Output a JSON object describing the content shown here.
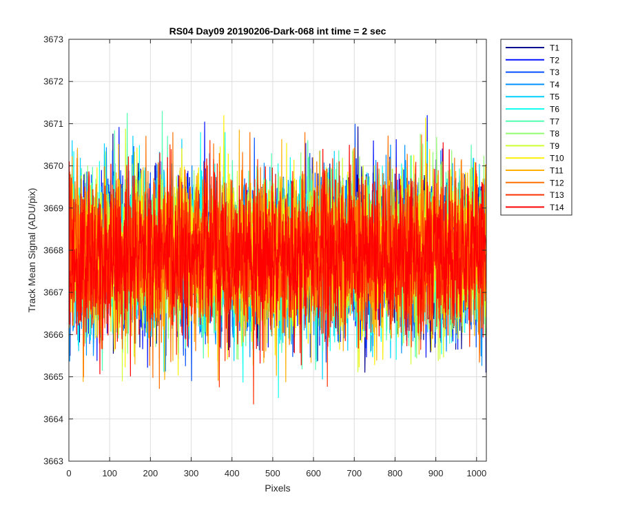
{
  "chart_data": {
    "type": "line",
    "title": "RS04 Day09 20190206-Dark-068 int time = 2 sec",
    "xlabel": "Pixels",
    "ylabel": "Track Mean Signal (ADU/pix)",
    "xlim": [
      0,
      1024
    ],
    "ylim": [
      3663,
      3673
    ],
    "xticks": [
      0,
      100,
      200,
      300,
      400,
      500,
      600,
      700,
      800,
      900,
      1000
    ],
    "yticks": [
      3663,
      3664,
      3665,
      3666,
      3667,
      3668,
      3669,
      3670,
      3671,
      3672,
      3673
    ],
    "grid": true,
    "legend_position": "outside-top-right",
    "series": [
      {
        "name": "T1",
        "color": "#00008F",
        "mean": 3667.9,
        "std": 0.95,
        "min_observed": 3665.1,
        "max_observed": 3671.5
      },
      {
        "name": "T2",
        "color": "#0010FF",
        "mean": 3667.9,
        "std": 0.95,
        "min_observed": 3665.0,
        "max_observed": 3671.2
      },
      {
        "name": "T3",
        "color": "#0050FF",
        "mean": 3667.9,
        "std": 0.95,
        "min_observed": 3664.9,
        "max_observed": 3671.0
      },
      {
        "name": "T4",
        "color": "#0090FF",
        "mean": 3667.9,
        "std": 0.95,
        "min_observed": 3664.8,
        "max_observed": 3672.1
      },
      {
        "name": "T5",
        "color": "#00D0FF",
        "mean": 3667.9,
        "std": 0.95,
        "min_observed": 3664.0,
        "max_observed": 3671.6
      },
      {
        "name": "T6",
        "color": "#10FFEF",
        "mean": 3667.9,
        "std": 0.95,
        "min_observed": 3664.5,
        "max_observed": 3670.8
      },
      {
        "name": "T7",
        "color": "#50FFAF",
        "mean": 3667.9,
        "std": 0.95,
        "min_observed": 3664.7,
        "max_observed": 3671.3
      },
      {
        "name": "T8",
        "color": "#90FF6F",
        "mean": 3667.9,
        "std": 0.95,
        "min_observed": 3664.6,
        "max_observed": 3671.4
      },
      {
        "name": "T9",
        "color": "#CFFF30",
        "mean": 3667.9,
        "std": 0.95,
        "min_observed": 3664.8,
        "max_observed": 3671.1
      },
      {
        "name": "T10",
        "color": "#FFEF00",
        "mean": 3667.9,
        "std": 0.95,
        "min_observed": 3664.1,
        "max_observed": 3671.2
      },
      {
        "name": "T11",
        "color": "#FFAF00",
        "mean": 3667.9,
        "std": 0.95,
        "min_observed": 3664.5,
        "max_observed": 3670.9
      },
      {
        "name": "T12",
        "color": "#FF7000",
        "mean": 3667.9,
        "std": 0.95,
        "min_observed": 3664.4,
        "max_observed": 3670.8
      },
      {
        "name": "T13",
        "color": "#FF3000",
        "mean": 3667.9,
        "std": 0.95,
        "min_observed": 3664.2,
        "max_observed": 3671.1
      },
      {
        "name": "T14",
        "color": "#FF0000",
        "mean": 3667.9,
        "std": 0.95,
        "min_observed": 3664.3,
        "max_observed": 3670.6
      }
    ]
  }
}
